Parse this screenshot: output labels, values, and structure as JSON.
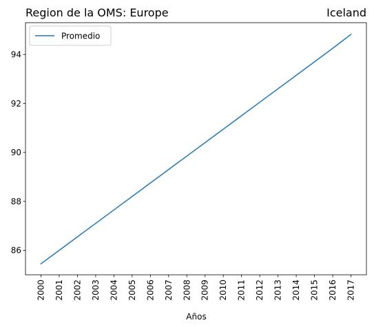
{
  "chart_data": {
    "type": "line",
    "title_left": "Region de la OMS: Europe",
    "title_right": "Iceland",
    "xlabel": "Años",
    "ylabel": "",
    "x": [
      "2000",
      "2001",
      "2002",
      "2003",
      "2004",
      "2005",
      "2006",
      "2007",
      "2008",
      "2009",
      "2010",
      "2011",
      "2012",
      "2013",
      "2014",
      "2015",
      "2016",
      "2017"
    ],
    "series": [
      {
        "name": "Promedio",
        "color": "#1f77b4",
        "values": [
          85.45,
          86.0,
          86.55,
          87.1,
          87.65,
          88.2,
          88.75,
          89.3,
          89.85,
          90.4,
          90.95,
          91.5,
          92.05,
          92.6,
          93.15,
          93.7,
          94.25,
          94.82
        ]
      }
    ],
    "yticks": [
      "86",
      "88",
      "90",
      "92",
      "94"
    ],
    "ylim": [
      85.0,
      95.3
    ],
    "legend_position": "upper-left",
    "grid": false
  }
}
